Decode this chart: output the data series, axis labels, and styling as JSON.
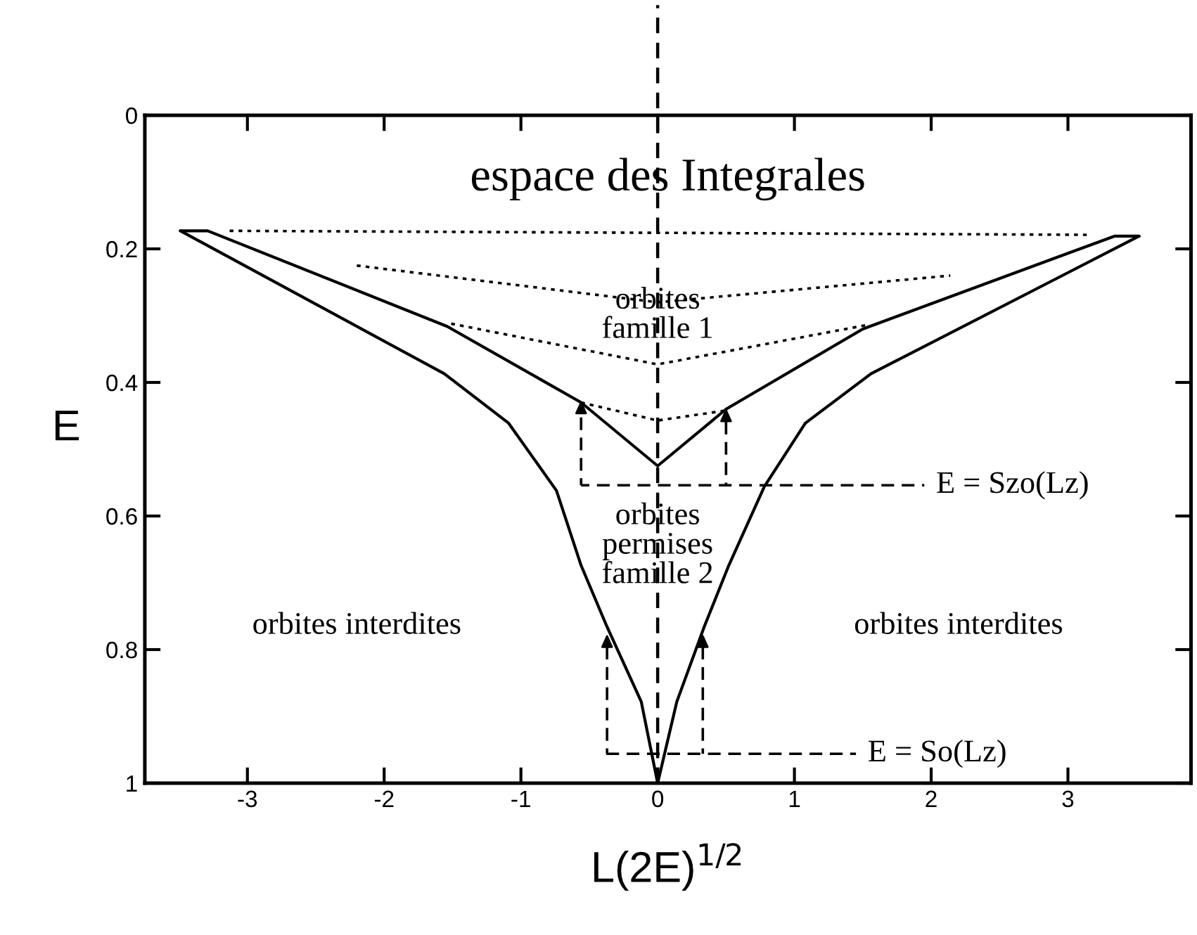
{
  "chart_data": {
    "type": "line",
    "title": "espace des Integrales",
    "xlabel": "L(2E)$^{1/2}$",
    "ylabel": "E",
    "xlim": [
      -3.75,
      3.9
    ],
    "ylim": [
      1,
      0
    ],
    "xticks": [
      -3,
      -2,
      -1,
      0,
      1,
      2,
      3
    ],
    "yticks": [
      0,
      0.2,
      0.4,
      0.6,
      0.8,
      1
    ],
    "grid": false,
    "legend": false,
    "series": [
      {
        "color": "#000000",
        "line_style": "solid",
        "x": [
          -3.49,
          -1.56,
          -1.09,
          -0.74,
          -0.56,
          -0.37,
          -0.12,
          0,
          0.14,
          0.34,
          0.52,
          0.78,
          1.08,
          1.56,
          3.52
        ],
        "values": [
          0.173,
          0.387,
          0.461,
          0.562,
          0.674,
          0.766,
          0.878,
          1.0,
          0.878,
          0.766,
          0.674,
          0.556,
          0.461,
          0.387,
          0.181
        ]
      },
      {
        "color": "#000000",
        "line_style": "solid",
        "x": [
          -3.49,
          -3.29,
          -1.54,
          -0.56,
          0,
          0.5,
          1.5,
          3.34,
          3.52
        ],
        "values": [
          0.173,
          0.173,
          0.316,
          0.43,
          0.525,
          0.44,
          0.32,
          0.181,
          0.181
        ]
      },
      {
        "color": "#000000",
        "line_style": "dotted",
        "x": [
          -3.13,
          3.17
        ],
        "values": [
          0.173,
          0.179
        ]
      },
      {
        "color": "#000000",
        "line_style": "dotted",
        "x": [
          -2.2,
          0,
          2.14
        ],
        "values": [
          0.225,
          0.28,
          0.24
        ]
      },
      {
        "color": "#000000",
        "line_style": "dotted",
        "x": [
          -1.51,
          0,
          1.53
        ],
        "values": [
          0.312,
          0.373,
          0.314
        ]
      },
      {
        "color": "#000000",
        "line_style": "dotted",
        "x": [
          -0.56,
          0,
          0.5
        ],
        "values": [
          0.43,
          0.457,
          0.442
        ]
      },
      {
        "color": "#000000",
        "line_style": "dashed",
        "x": [
          -0.56,
          1.95
        ],
        "values": [
          0.554,
          0.554
        ]
      },
      {
        "color": "#000000",
        "line_style": "dashed",
        "x": [
          -0.38,
          1.45
        ],
        "values": [
          0.956,
          0.956
        ]
      },
      {
        "color": "#000000",
        "line_style": "dashed",
        "x": [
          -0.56,
          -0.56
        ],
        "values": [
          0.554,
          0.43
        ]
      },
      {
        "color": "#000000",
        "line_style": "dashed",
        "x": [
          0.5,
          0.5
        ],
        "values": [
          0.554,
          0.442
        ]
      },
      {
        "color": "#000000",
        "line_style": "dashed",
        "x": [
          -0.37,
          -0.37
        ],
        "values": [
          0.956,
          0.78
        ]
      },
      {
        "color": "#000000",
        "line_style": "dashed",
        "x": [
          0.33,
          0.33
        ],
        "values": [
          0.956,
          0.78
        ]
      }
    ],
    "ref_lines": [
      {
        "axis": "x",
        "value": 0,
        "line_style": "dashed",
        "color": "#000000"
      }
    ],
    "annotations": [
      {
        "text": "orbites\nfamille 1",
        "x": 0,
        "y": 0.3
      },
      {
        "text": "orbites\npermises\nfamille 2",
        "x": 0,
        "y": 0.645
      },
      "orbites interdites",
      "orbites interdites",
      {
        "text": "E = Szo(Lz)",
        "x": 1.95,
        "y": 0.554
      },
      {
        "text": "E = So(Lz)",
        "x": 1.45,
        "y": 0.956
      }
    ]
  }
}
